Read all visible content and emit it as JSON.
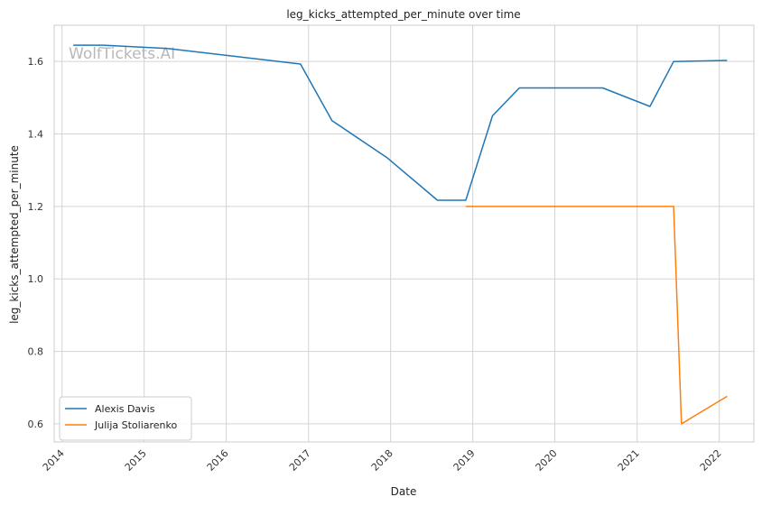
{
  "chart_data": {
    "type": "line",
    "title": "leg_kicks_attempted_per_minute over time",
    "xlabel": "Date",
    "ylabel": "leg_kicks_attempted_per_minute",
    "watermark": "WolfTickets.AI",
    "xlim": [
      "2013-11-27",
      "2022-06-04"
    ],
    "ylim": [
      0.55,
      1.7
    ],
    "x_ticks": [
      "2014",
      "2015",
      "2016",
      "2017",
      "2018",
      "2019",
      "2020",
      "2021",
      "2022"
    ],
    "y_ticks": [
      "0.6",
      "0.8",
      "1.0",
      "1.2",
      "1.4",
      "1.6"
    ],
    "grid": true,
    "legend_position": "lower-left",
    "series": [
      {
        "name": "Alexis Davis",
        "color": "#1f77b4",
        "points": [
          {
            "x": "2014-02-20",
            "y": 1.645
          },
          {
            "x": "2014-07-01",
            "y": 1.645
          },
          {
            "x": "2015-04-15",
            "y": 1.636
          },
          {
            "x": "2016-11-26",
            "y": 1.593
          },
          {
            "x": "2017-04-15",
            "y": 1.437
          },
          {
            "x": "2017-12-15",
            "y": 1.335
          },
          {
            "x": "2018-07-28",
            "y": 1.217
          },
          {
            "x": "2018-12-01",
            "y": 1.217
          },
          {
            "x": "2019-03-30",
            "y": 1.45
          },
          {
            "x": "2019-07-27",
            "y": 1.527
          },
          {
            "x": "2020-08-01",
            "y": 1.527
          },
          {
            "x": "2021-02-27",
            "y": 1.476
          },
          {
            "x": "2021-06-12",
            "y": 1.6
          },
          {
            "x": "2022-02-05",
            "y": 1.603
          }
        ]
      },
      {
        "name": "Julija Stoliarenko",
        "color": "#ff7f0e",
        "points": [
          {
            "x": "2018-12-01",
            "y": 1.2
          },
          {
            "x": "2021-06-12",
            "y": 1.2
          },
          {
            "x": "2021-07-17",
            "y": 0.6
          },
          {
            "x": "2022-02-05",
            "y": 0.676
          }
        ]
      }
    ]
  }
}
